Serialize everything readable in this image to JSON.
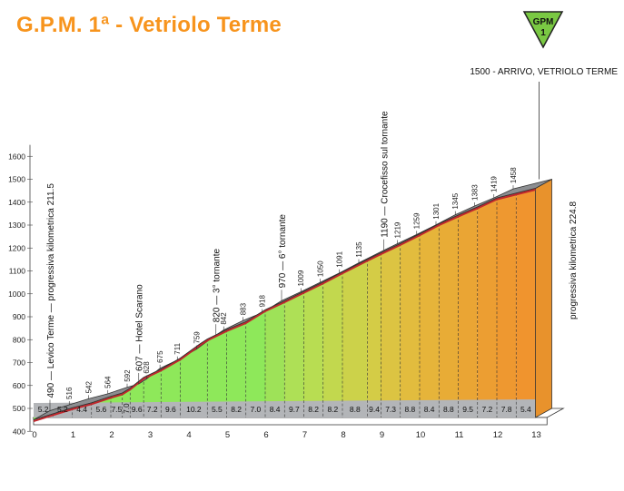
{
  "title": "G.P.M. 1ª - Vetriolo Terme",
  "badge": {
    "top": "GPM",
    "bottom": "1",
    "color": "#7ac943"
  },
  "colors": {
    "title": "#f7941d",
    "sideFace": "#a7a9ac",
    "topFace": "#8c8e91",
    "redLine": "#c1272d"
  },
  "chart_data": {
    "type": "area",
    "xlabel": "",
    "ylabel": "",
    "ylim": [
      400,
      1600
    ],
    "xlim": [
      0,
      13.3
    ],
    "yticks": [
      400,
      500,
      600,
      700,
      800,
      900,
      1000,
      1100,
      1200,
      1300,
      1400,
      1500,
      1600
    ],
    "xticks": [
      0,
      1,
      2,
      3,
      4,
      5,
      6,
      7,
      8,
      9,
      10,
      11,
      12,
      13
    ],
    "profile": [
      {
        "x": 0.0,
        "y": 490
      },
      {
        "x": 0.5,
        "y": 516
      },
      {
        "x": 1.0,
        "y": 542
      },
      {
        "x": 1.5,
        "y": 564
      },
      {
        "x": 2.0,
        "y": 592
      },
      {
        "x": 2.3,
        "y": 607
      },
      {
        "x": 2.5,
        "y": 628
      },
      {
        "x": 2.85,
        "y": 675
      },
      {
        "x": 3.3,
        "y": 711
      },
      {
        "x": 3.8,
        "y": 759
      },
      {
        "x": 4.3,
        "y": 820
      },
      {
        "x": 4.5,
        "y": 842
      },
      {
        "x": 5.0,
        "y": 883
      },
      {
        "x": 5.5,
        "y": 918
      },
      {
        "x": 6.0,
        "y": 970
      },
      {
        "x": 6.5,
        "y": 1009
      },
      {
        "x": 7.0,
        "y": 1050
      },
      {
        "x": 7.5,
        "y": 1091
      },
      {
        "x": 8.0,
        "y": 1135
      },
      {
        "x": 8.65,
        "y": 1190
      },
      {
        "x": 9.0,
        "y": 1219
      },
      {
        "x": 9.5,
        "y": 1259
      },
      {
        "x": 10.0,
        "y": 1301
      },
      {
        "x": 10.5,
        "y": 1345
      },
      {
        "x": 11.0,
        "y": 1383
      },
      {
        "x": 11.5,
        "y": 1419
      },
      {
        "x": 12.0,
        "y": 1458
      },
      {
        "x": 13.0,
        "y": 1500
      }
    ],
    "point_labels": [
      {
        "x": 0.5,
        "y": 516,
        "label": "516"
      },
      {
        "x": 1.0,
        "y": 542,
        "label": "542"
      },
      {
        "x": 1.5,
        "y": 564,
        "label": "564"
      },
      {
        "x": 2.0,
        "y": 592,
        "label": "592"
      },
      {
        "x": 2.5,
        "y": 628,
        "label": "628"
      },
      {
        "x": 2.85,
        "y": 675,
        "label": "675"
      },
      {
        "x": 3.3,
        "y": 711,
        "label": "711"
      },
      {
        "x": 3.8,
        "y": 759,
        "label": "759"
      },
      {
        "x": 4.5,
        "y": 842,
        "label": "842"
      },
      {
        "x": 5.0,
        "y": 883,
        "label": "883"
      },
      {
        "x": 5.5,
        "y": 918,
        "label": "918"
      },
      {
        "x": 6.5,
        "y": 1009,
        "label": "1009"
      },
      {
        "x": 7.0,
        "y": 1050,
        "label": "1050"
      },
      {
        "x": 7.5,
        "y": 1091,
        "label": "1091"
      },
      {
        "x": 8.0,
        "y": 1135,
        "label": "1135"
      },
      {
        "x": 9.0,
        "y": 1219,
        "label": "1219"
      },
      {
        "x": 9.5,
        "y": 1259,
        "label": "1259"
      },
      {
        "x": 10.0,
        "y": 1301,
        "label": "1301"
      },
      {
        "x": 10.5,
        "y": 1345,
        "label": "1345"
      },
      {
        "x": 11.0,
        "y": 1383,
        "label": "1383"
      },
      {
        "x": 11.5,
        "y": 1419,
        "label": "1419"
      },
      {
        "x": 12.0,
        "y": 1458,
        "label": "1458"
      }
    ],
    "landmarks": [
      {
        "x": 0.0,
        "y": 490,
        "label": "490 — Levico Terme — progressiva kilometrica 211.5"
      },
      {
        "x": 2.3,
        "y": 607,
        "label": "607 — Hotel Scarano"
      },
      {
        "x": 4.3,
        "y": 820,
        "label": "820 — 3° tornante"
      },
      {
        "x": 6.0,
        "y": 970,
        "label": "970 — 6° tornante"
      },
      {
        "x": 8.65,
        "y": 1190,
        "label": "1190 — Crocefisso sul tornante"
      }
    ],
    "finish_label": "1500 - ARRIVO, VETRIOLO TERME",
    "right_label": "progressiva kilometrica 224.8",
    "segments": [
      {
        "x0": 0.0,
        "x1": 0.5,
        "grade": "5.2",
        "color": "#8ee85a"
      },
      {
        "x0": 0.5,
        "x1": 1.0,
        "grade": "5.2",
        "color": "#8ee85a"
      },
      {
        "x0": 1.0,
        "x1": 1.5,
        "grade": "4.4",
        "color": "#8ee85a"
      },
      {
        "x0": 1.5,
        "x1": 2.0,
        "grade": "5.6",
        "color": "#8ee85a"
      },
      {
        "x0": 2.0,
        "x1": 2.3,
        "grade": "7.5",
        "color": "#8ee85a"
      },
      {
        "x0": 2.3,
        "x1": 2.5,
        "grade": "7.0",
        "color": "#8ee85a"
      },
      {
        "x0": 2.5,
        "x1": 2.85,
        "grade": "9.6",
        "color": "#8ee85a"
      },
      {
        "x0": 2.85,
        "x1": 3.3,
        "grade": "7.2",
        "color": "#8ee85a"
      },
      {
        "x0": 3.3,
        "x1": 3.8,
        "grade": "9.6",
        "color": "#8ee85a"
      },
      {
        "x0": 3.8,
        "x1": 4.5,
        "grade": "10.2",
        "color": "#8ee85a"
      },
      {
        "x0": 4.5,
        "x1": 5.0,
        "grade": "5.5",
        "color": "#8ee85a"
      },
      {
        "x0": 5.0,
        "x1": 5.5,
        "grade": "8.2",
        "color": "#8ee85a"
      },
      {
        "x0": 5.5,
        "x1": 6.0,
        "grade": "7.0",
        "color": "#8ee85a"
      },
      {
        "x0": 6.0,
        "x1": 6.5,
        "grade": "8.4",
        "color": "#9ee258"
      },
      {
        "x0": 6.5,
        "x1": 7.0,
        "grade": "9.7",
        "color": "#aee056"
      },
      {
        "x0": 7.0,
        "x1": 7.5,
        "grade": "8.2",
        "color": "#b8dd52"
      },
      {
        "x0": 7.5,
        "x1": 8.0,
        "grade": "8.2",
        "color": "#c2d84e"
      },
      {
        "x0": 8.0,
        "x1": 8.65,
        "grade": "8.8",
        "color": "#ccd24a"
      },
      {
        "x0": 8.65,
        "x1": 9.0,
        "grade": "9.4",
        "color": "#d4cc46"
      },
      {
        "x0": 9.0,
        "x1": 9.5,
        "grade": "7.3",
        "color": "#dcc442"
      },
      {
        "x0": 9.5,
        "x1": 10.0,
        "grade": "8.8",
        "color": "#e2bc3e"
      },
      {
        "x0": 10.0,
        "x1": 10.5,
        "grade": "8.4",
        "color": "#e6b43a"
      },
      {
        "x0": 10.5,
        "x1": 11.0,
        "grade": "8.8",
        "color": "#e8ac36"
      },
      {
        "x0": 11.0,
        "x1": 11.5,
        "grade": "9.5",
        "color": "#eaa534"
      },
      {
        "x0": 11.5,
        "x1": 12.0,
        "grade": "7.2",
        "color": "#ec9e32"
      },
      {
        "x0": 12.0,
        "x1": 12.5,
        "grade": "7.8",
        "color": "#ee9830"
      },
      {
        "x0": 12.5,
        "x1": 13.0,
        "grade": "5.4",
        "color": "#f0942e"
      }
    ]
  }
}
